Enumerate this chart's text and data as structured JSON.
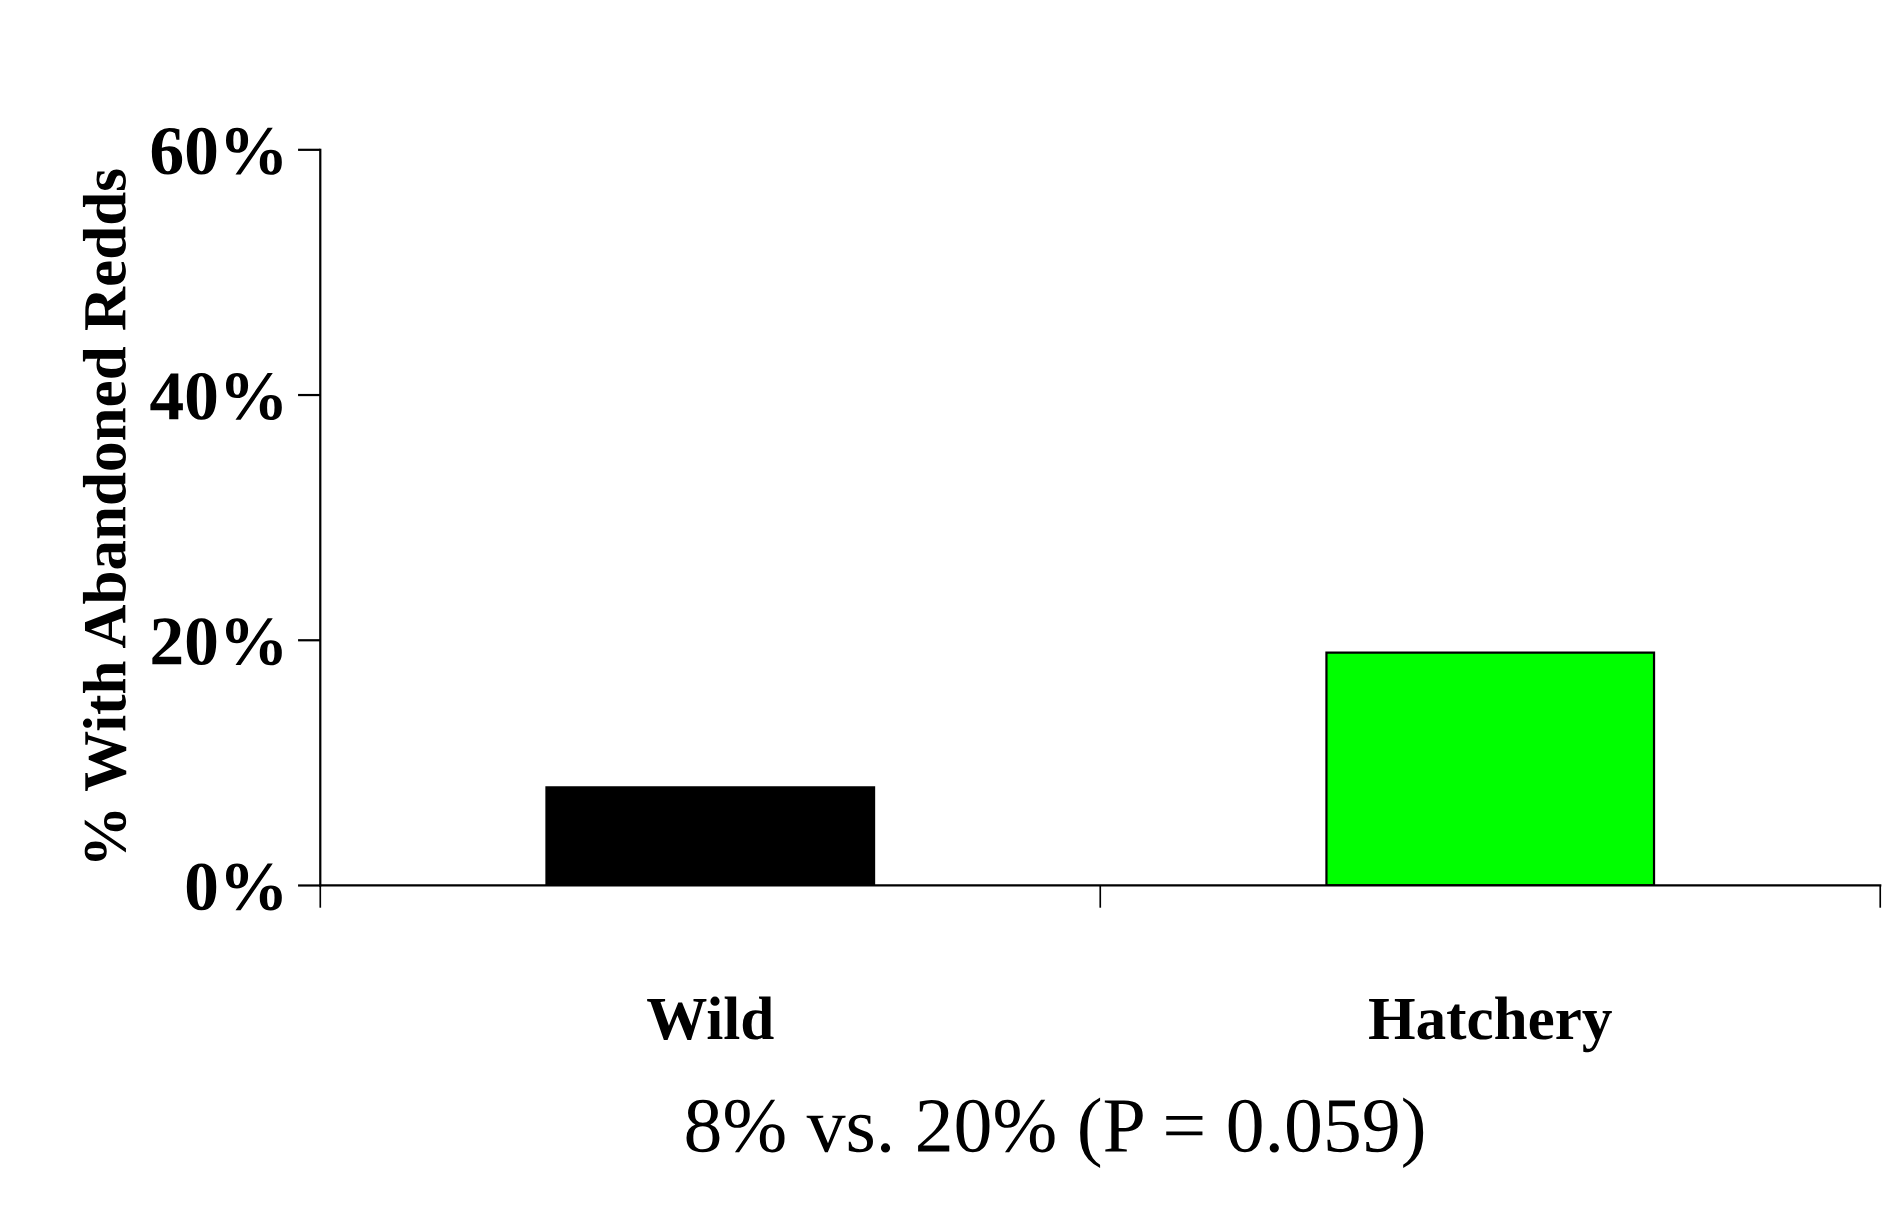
{
  "chart_data": {
    "type": "bar",
    "ylabel": "% With Abandoned Redds",
    "categories": [
      "Wild",
      "Hatchery"
    ],
    "colors": [
      "#000000",
      "#00ff00"
    ],
    "values": [
      8,
      19
    ],
    "ylim": [
      0,
      60
    ],
    "yticks": [
      {
        "value": 0,
        "label": "0%"
      },
      {
        "value": 20,
        "label": "20%"
      },
      {
        "value": 40,
        "label": "40%"
      },
      {
        "value": 60,
        "label": "60%"
      }
    ],
    "grid": false,
    "legend": false,
    "annotations": [
      "8% vs. 20% (P = 0.059)"
    ]
  }
}
